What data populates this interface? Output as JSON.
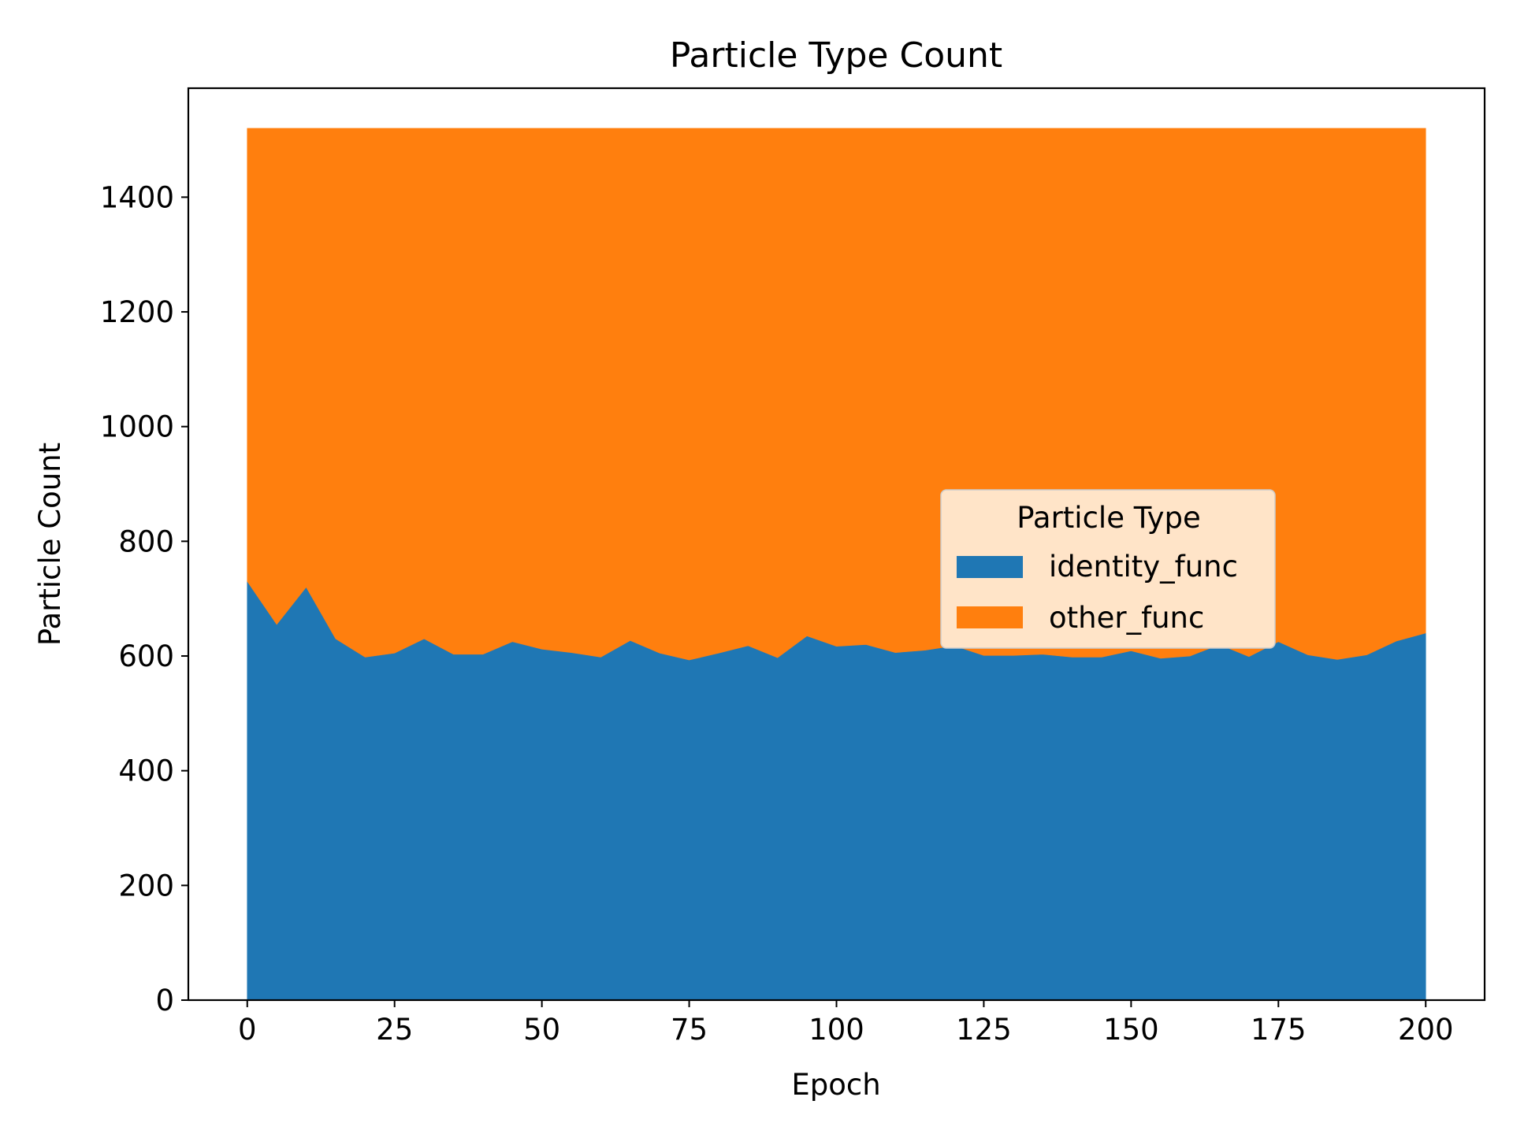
{
  "chart_data": {
    "type": "area",
    "stacked": true,
    "title": "Particle Type Count",
    "xlabel": "Epoch",
    "ylabel": "Particle Count",
    "xlim": [
      -10,
      210
    ],
    "ylim": [
      0,
      1590
    ],
    "xticks": [
      0,
      25,
      50,
      75,
      100,
      125,
      150,
      175,
      200
    ],
    "yticks": [
      0,
      200,
      400,
      600,
      800,
      1000,
      1200,
      1400
    ],
    "grid": false,
    "legend": {
      "title": "Particle Type",
      "placement": "center-right"
    },
    "x": [
      0,
      5,
      10,
      15,
      20,
      25,
      30,
      35,
      40,
      45,
      50,
      55,
      60,
      65,
      70,
      75,
      80,
      85,
      90,
      95,
      100,
      105,
      110,
      115,
      120,
      125,
      130,
      135,
      140,
      145,
      150,
      155,
      160,
      165,
      170,
      175,
      180,
      185,
      190,
      195,
      200
    ],
    "series": [
      {
        "name": "identity_func",
        "color": "#1f77b4",
        "values": [
          730,
          655,
          720,
          630,
          598,
          605,
          630,
          603,
          603,
          625,
          612,
          606,
          598,
          627,
          605,
          593,
          605,
          618,
          597,
          635,
          617,
          620,
          606,
          610,
          618,
          601,
          601,
          603,
          598,
          598,
          609,
          596,
          600,
          620,
          599,
          625,
          602,
          594,
          602,
          626,
          640
        ]
      },
      {
        "name": "other_func",
        "color": "#ff7f0e",
        "values": [
          790,
          865,
          800,
          890,
          922,
          915,
          890,
          917,
          917,
          895,
          908,
          914,
          922,
          893,
          915,
          927,
          915,
          902,
          923,
          885,
          903,
          900,
          914,
          910,
          902,
          919,
          919,
          917,
          922,
          922,
          911,
          924,
          920,
          900,
          921,
          895,
          918,
          926,
          918,
          894,
          880
        ]
      }
    ]
  }
}
